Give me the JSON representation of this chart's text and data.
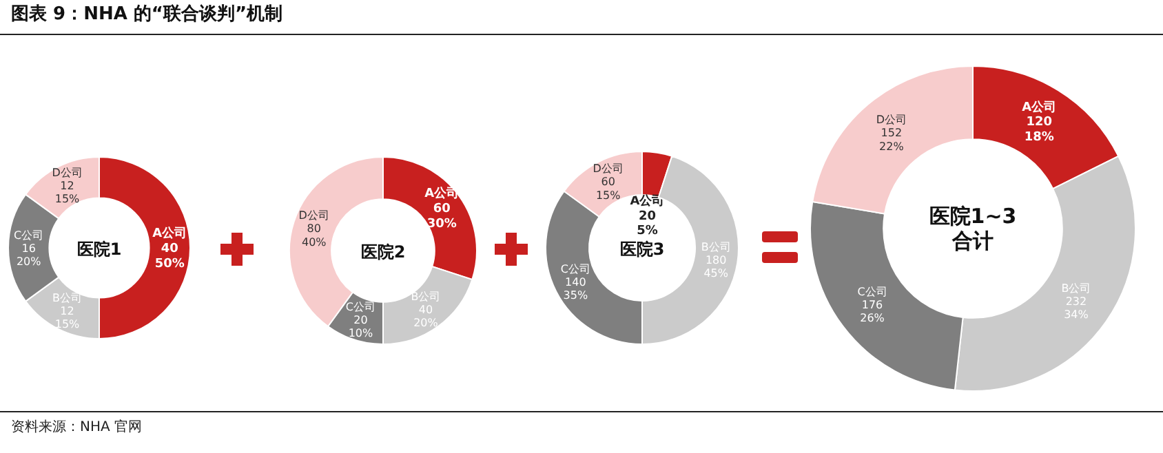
{
  "chart_data": [
    {
      "type": "donut",
      "title": "医院1",
      "categories": [
        "A公司",
        "B公司",
        "C公司",
        "D公司"
      ],
      "values": [
        40,
        12,
        16,
        12
      ],
      "colors": [
        "#c8201f",
        "#cbcbcb",
        "#7f7f7f",
        "#f7cccc"
      ],
      "value_labels": [
        "40\n50%",
        "12\n15%",
        "16\n20%",
        "12\n15%"
      ],
      "annotations": [
        "图表 9：NHA 的“联合谈判”机制",
        "资料来源：NHA 官网"
      ]
    },
    {
      "type": "donut",
      "title": "医院2",
      "categories": [
        "A公司",
        "B公司",
        "C公司",
        "D公司"
      ],
      "values": [
        60,
        40,
        20,
        80
      ],
      "colors": [
        "#c8201f",
        "#cbcbcb",
        "#7f7f7f",
        "#f7cccc"
      ],
      "value_labels": [
        "60\n30%",
        "40\n20%",
        "20\n10%",
        "80\n40%"
      ]
    },
    {
      "type": "donut",
      "title": "医院3",
      "categories": [
        "A公司",
        "B公司",
        "C公司",
        "D公司"
      ],
      "values": [
        20,
        180,
        140,
        60
      ],
      "colors": [
        "#c8201f",
        "#cbcbcb",
        "#7f7f7f",
        "#f7cccc"
      ],
      "value_labels": [
        "20\n5%",
        "180\n45%",
        "140\n35%",
        "60\n15%"
      ]
    },
    {
      "type": "donut",
      "title": "医院1~3\n合计",
      "categories": [
        "A公司",
        "B公司",
        "C公司",
        "D公司"
      ],
      "values": [
        120,
        232,
        176,
        152
      ],
      "colors": [
        "#c8201f",
        "#cbcbcb",
        "#7f7f7f",
        "#f7cccc"
      ],
      "value_labels": [
        "120\n18%",
        "232\n34%",
        "176\n26%",
        "152\n22%"
      ]
    }
  ]
}
